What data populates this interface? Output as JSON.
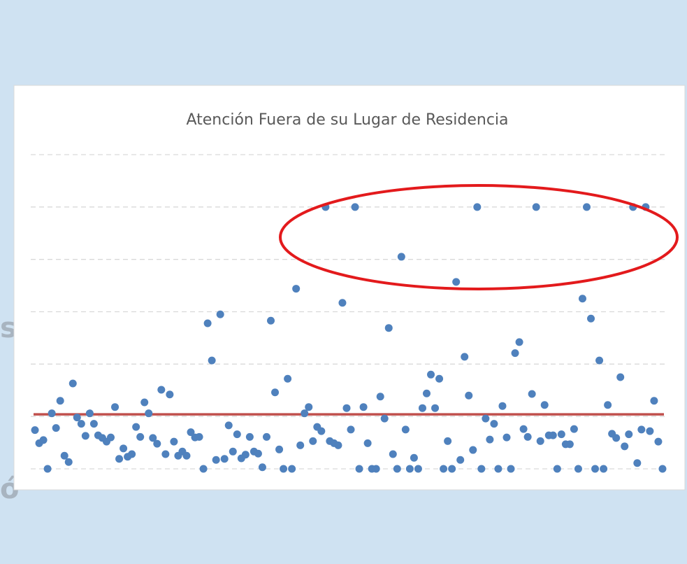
{
  "background_fragments": [
    "s",
    "ó"
  ],
  "chart_data": {
    "type": "scatter",
    "title": "Atención Fuera de su Lugar de Residencia",
    "x": [
      1,
      2,
      3,
      4,
      5,
      6,
      7,
      8,
      9,
      10,
      11,
      12,
      13,
      14,
      15,
      16,
      17,
      18,
      19,
      20,
      21,
      22,
      23,
      24,
      25,
      26,
      27,
      28,
      29,
      30,
      31,
      32,
      33,
      34,
      35,
      36,
      37,
      38,
      39,
      40,
      41,
      42,
      43,
      44,
      45,
      46,
      47,
      48,
      49,
      50,
      51,
      52,
      53,
      54,
      55,
      56,
      57,
      58,
      59,
      60,
      61,
      62,
      63,
      64,
      65,
      66,
      67,
      68,
      69,
      70,
      71,
      72,
      73,
      74,
      75,
      76,
      77,
      78,
      79,
      80,
      81,
      82,
      83,
      84,
      85,
      86,
      87,
      88,
      89,
      90,
      91,
      92,
      93,
      94,
      95,
      96,
      97,
      98,
      99,
      100,
      101,
      102,
      103,
      104,
      105,
      106,
      107,
      108,
      109,
      110,
      111,
      112,
      113,
      114,
      115,
      116,
      117,
      118,
      119,
      120,
      121,
      122,
      123,
      124,
      125,
      126,
      127,
      128,
      129,
      130,
      131,
      132,
      133,
      134,
      135,
      136,
      137,
      138,
      139,
      140,
      141,
      142,
      143,
      144,
      145,
      146,
      147,
      148,
      149,
      150
    ],
    "series": [
      {
        "color": "#4f81bd",
        "values": [
          0.74,
          0.49,
          0.55,
          0,
          1.06,
          0.78,
          1.3,
          0.25,
          0.13,
          1.63,
          0.98,
          0.86,
          0.63,
          1.06,
          0.86,
          0.64,
          0.59,
          0.52,
          0.6,
          1.18,
          0.19,
          0.39,
          0.23,
          0.28,
          0.8,
          0.61,
          1.27,
          1.06,
          0.59,
          0.48,
          1.51,
          0.28,
          1.42,
          0.52,
          0.25,
          0.33,
          0.25,
          0.7,
          0.6,
          0.61,
          0,
          2.78,
          2.07,
          0.17,
          2.95,
          0.19,
          0.83,
          0.33,
          0.66,
          0.2,
          0.27,
          0.61,
          0.33,
          0.29,
          0.03,
          0.61,
          2.83,
          1.46,
          0.37,
          0,
          1.72,
          0,
          3.44,
          0.45,
          1.06,
          1.18,
          0.53,
          0.8,
          0.72,
          5,
          0.53,
          0.49,
          0.45,
          3.17,
          1.16,
          0.75,
          5,
          0,
          1.18,
          0.49,
          0,
          0,
          1.38,
          0.96,
          2.69,
          0.28,
          0,
          4.05,
          0.75,
          0,
          0.21,
          0,
          1.16,
          1.44,
          1.8,
          1.16,
          1.72,
          0,
          0.53,
          0,
          3.57,
          0.17,
          2.14,
          1.4,
          0.36,
          5,
          0,
          0.96,
          0.56,
          0.86,
          0,
          1.2,
          0.6,
          0,
          2.21,
          2.42,
          0.76,
          0.61,
          1.43,
          5,
          0.53,
          1.22,
          0.64,
          0.64,
          0,
          0.66,
          0.47,
          0.47,
          0.76,
          0,
          3.25,
          5,
          2.87,
          0,
          2.07,
          0,
          1.22,
          0.67,
          0.59,
          1.75,
          0.43,
          0.66,
          5,
          0.11,
          0.75,
          5,
          0.72,
          1.3,
          0.52,
          0
        ]
      }
    ],
    "xlim": [
      0,
      151
    ],
    "ylim": [
      0,
      6
    ],
    "yticks": [
      0,
      1,
      2,
      3,
      4,
      5,
      6
    ],
    "grid": true,
    "reference_line": {
      "value": 1.04,
      "color": "#c0504d"
    }
  }
}
